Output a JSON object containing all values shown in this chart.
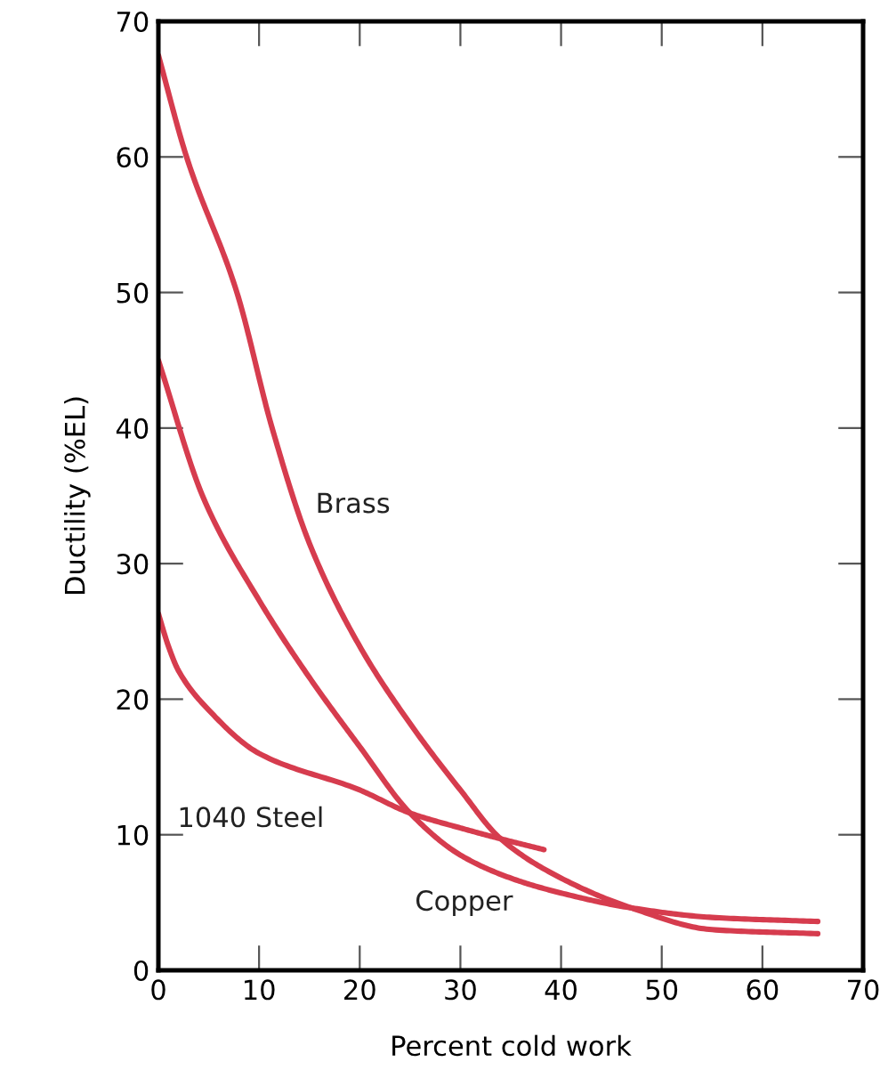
{
  "chart_data": {
    "type": "line",
    "xlabel": "Percent cold work",
    "ylabel": "Ductility (%EL)",
    "xlim": [
      0,
      70
    ],
    "ylim": [
      0,
      70
    ],
    "xticks": [
      0,
      10,
      20,
      30,
      40,
      50,
      60,
      70
    ],
    "yticks": [
      0,
      10,
      20,
      30,
      40,
      50,
      60,
      70
    ],
    "grid": false,
    "marker": "none",
    "line_style": "solid",
    "series": [
      {
        "name": "Brass",
        "color": "#d63c4e",
        "x": [
          0,
          2.8,
          7.8,
          11.3,
          15,
          20,
          25,
          30,
          34,
          40,
          47,
          55,
          65.5
        ],
        "values": [
          67.5,
          60,
          50,
          40,
          31.5,
          23.9,
          18.2,
          13.3,
          9.7,
          6.8,
          4.6,
          3.0,
          2.7
        ]
      },
      {
        "name": "Copper",
        "color": "#d63c4e",
        "x": [
          0,
          4.5,
          10,
          15,
          20,
          25,
          30,
          35,
          40,
          47,
          55,
          65.5
        ],
        "values": [
          45,
          34.8,
          27.3,
          21.6,
          16.5,
          11.6,
          8.5,
          6.8,
          5.7,
          4.6,
          3.9,
          3.6
        ]
      },
      {
        "name": "1040 Steel",
        "color": "#d63c4e",
        "x": [
          0,
          1,
          2,
          5,
          10,
          20,
          25,
          30,
          34,
          38.3
        ],
        "values": [
          26.3,
          23.9,
          22.1,
          19.2,
          16.0,
          13.3,
          11.6,
          10.5,
          9.7,
          8.9
        ]
      }
    ]
  }
}
